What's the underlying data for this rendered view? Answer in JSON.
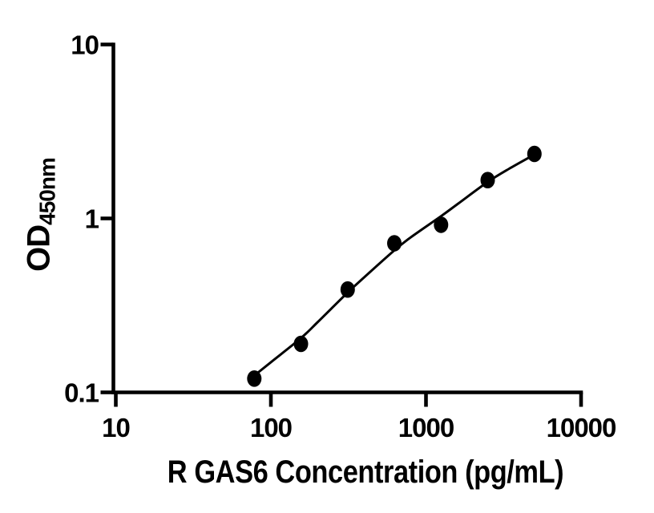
{
  "chart_data": {
    "type": "scatter",
    "title": "",
    "xlabel": "R GAS6 Concentration (pg/mL)",
    "ylabel": "OD",
    "ylabel_subscript": "450nm",
    "x_scale": "log10",
    "y_scale": "log10",
    "xlim": [
      10,
      10000
    ],
    "ylim": [
      0.1,
      10
    ],
    "x_ticks": [
      "10",
      "100",
      "1000",
      "10000"
    ],
    "y_ticks": [
      "10",
      "1",
      "0.1"
    ],
    "grid": false,
    "legend": false,
    "axis_color": "#000000",
    "marker_color": "#000000",
    "line_color": "#000000",
    "background_color": "#ffffff",
    "series": [
      {
        "name": "standard-points",
        "type": "scatter",
        "x": [
          78.125,
          156.25,
          312.5,
          625,
          1250,
          2500,
          5000
        ],
        "y": [
          0.12,
          0.19,
          0.39,
          0.72,
          0.92,
          1.66,
          2.35
        ]
      },
      {
        "name": "fitted-curve",
        "type": "line",
        "x": [
          78.125,
          100,
          156.25,
          200,
          312.5,
          400,
          625,
          800,
          1250,
          1600,
          2500,
          3500,
          5000
        ],
        "y": [
          0.125,
          0.149,
          0.205,
          0.253,
          0.375,
          0.459,
          0.655,
          0.78,
          1.03,
          1.21,
          1.62,
          1.95,
          2.33
        ]
      }
    ]
  }
}
